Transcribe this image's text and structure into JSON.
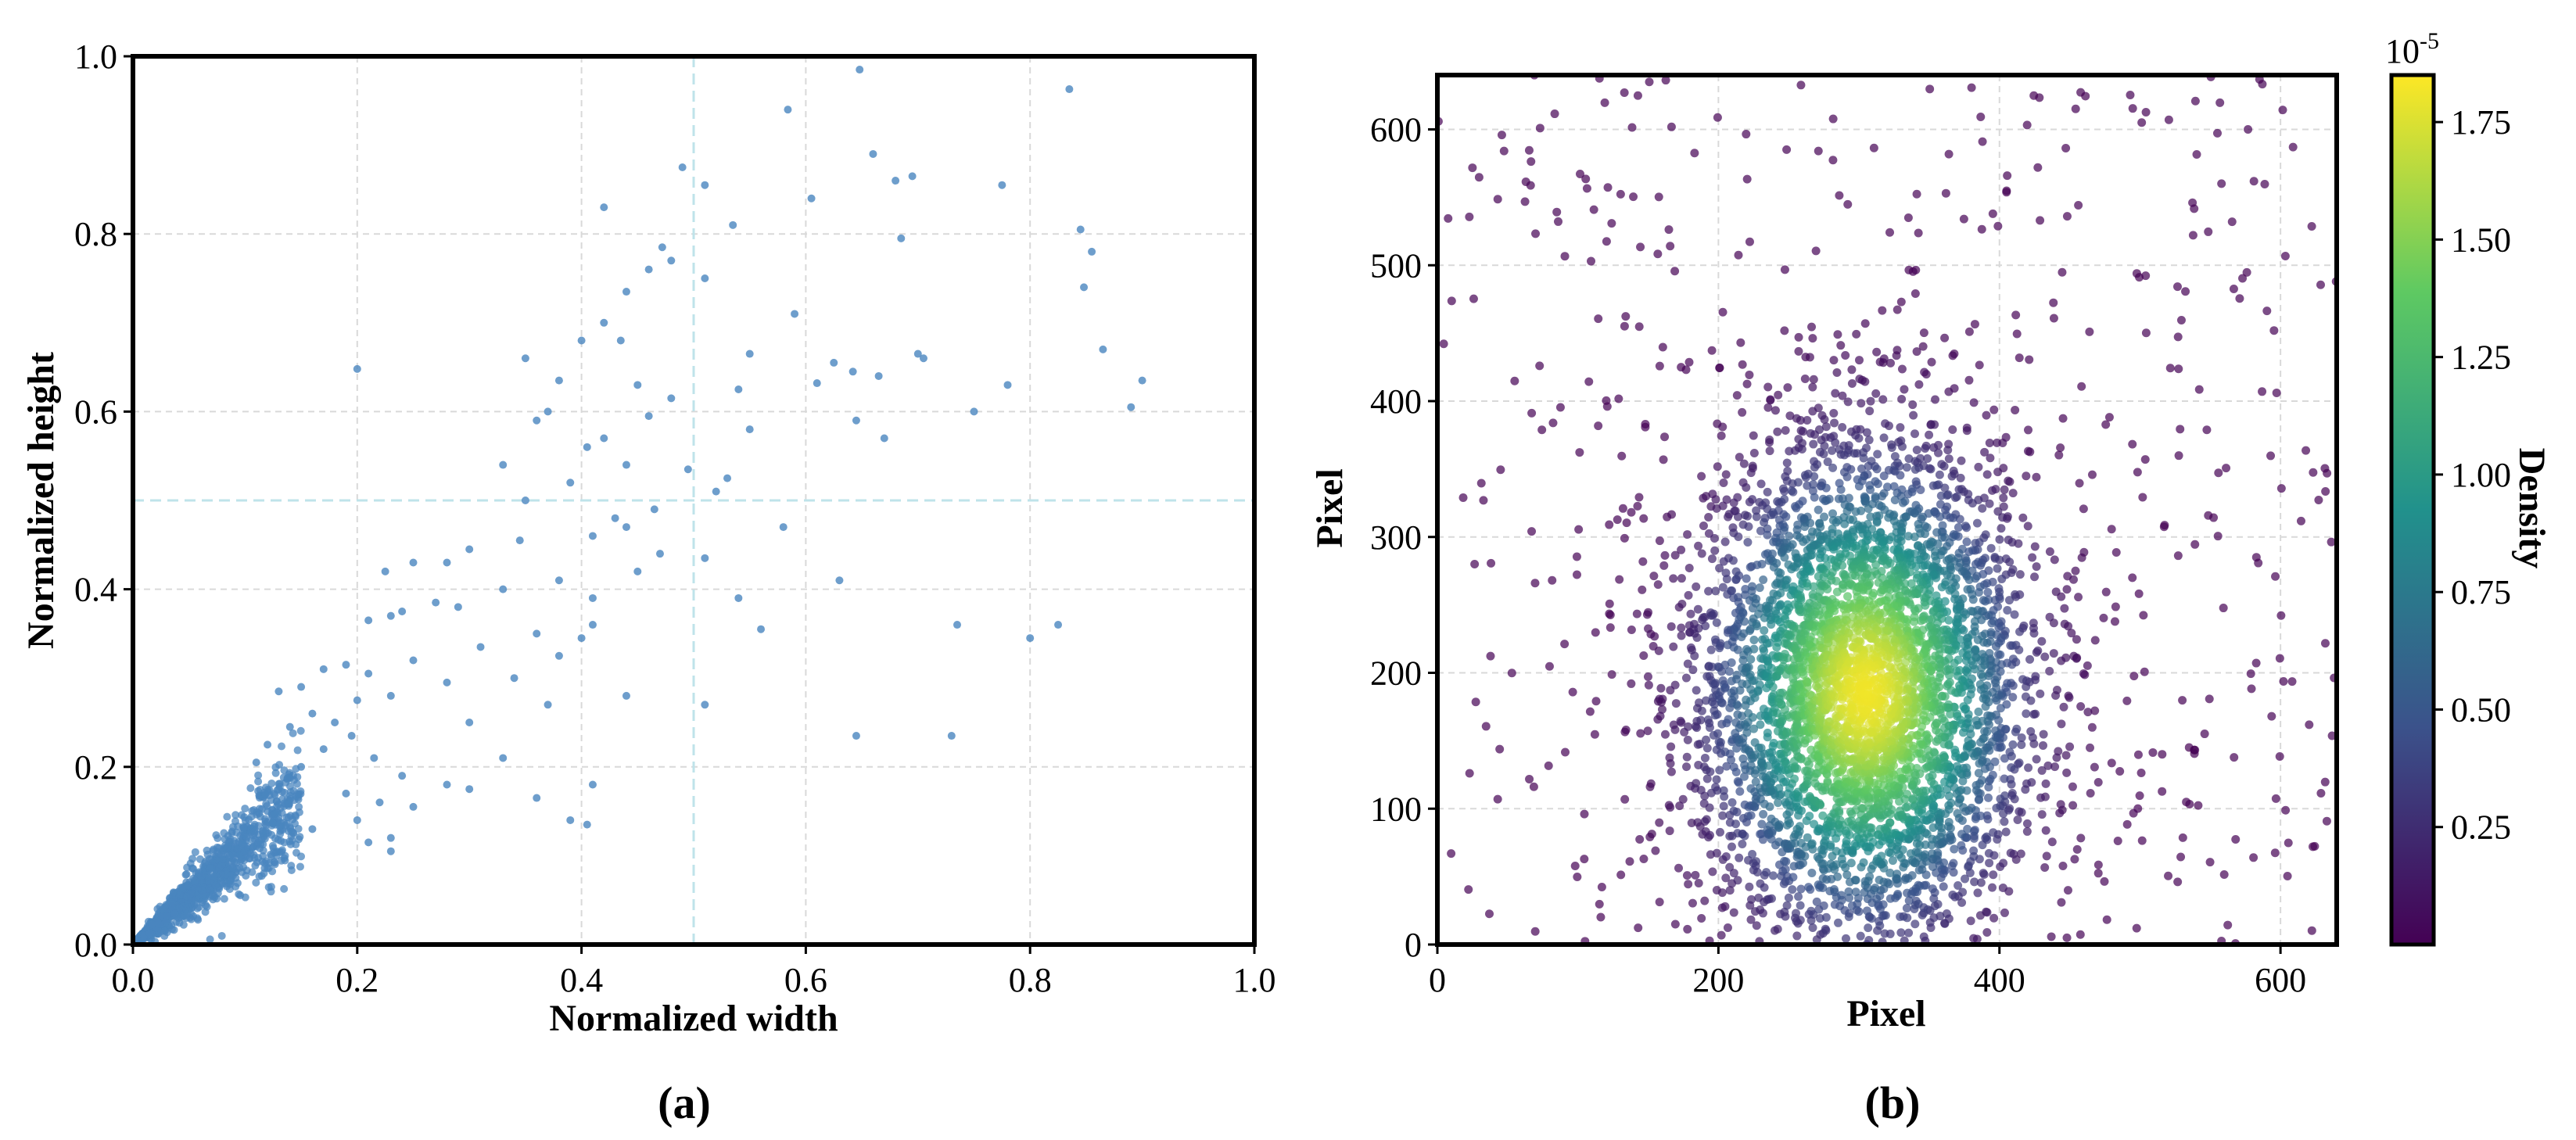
{
  "colors": {
    "scatter_a": "#4a86bf",
    "reference_line": "#bfe3ea",
    "grid": "#d9d9d9",
    "colormap": [
      "#440154",
      "#3b528b",
      "#21918c",
      "#5ec962",
      "#fde725"
    ]
  },
  "chart_data": [
    {
      "type": "scatter",
      "panel_label": "(a)",
      "xlabel": "Normalized width",
      "ylabel": "Normalized height",
      "xlim": [
        0.0,
        1.0
      ],
      "ylim": [
        0.0,
        1.0
      ],
      "xticks": [
        "0.0",
        "0.2",
        "0.4",
        "0.6",
        "0.8",
        "1.0"
      ],
      "yticks": [
        "0.0",
        "0.2",
        "0.4",
        "0.6",
        "0.8",
        "1.0"
      ],
      "grid": true,
      "reference_lines": {
        "x": 0.5,
        "y": 0.5
      },
      "cluster": {
        "note": "dense cluster near origin along y≈1.1x, ~1400 points",
        "x_range": [
          0.0,
          0.15
        ],
        "slope": 1.1
      },
      "points": [
        [
          0.648,
          0.985
        ],
        [
          0.835,
          0.963
        ],
        [
          0.584,
          0.94
        ],
        [
          0.66,
          0.89
        ],
        [
          0.49,
          0.875
        ],
        [
          0.775,
          0.855
        ],
        [
          0.51,
          0.855
        ],
        [
          0.68,
          0.86
        ],
        [
          0.695,
          0.865
        ],
        [
          0.605,
          0.84
        ],
        [
          0.42,
          0.83
        ],
        [
          0.845,
          0.805
        ],
        [
          0.535,
          0.81
        ],
        [
          0.685,
          0.795
        ],
        [
          0.472,
          0.785
        ],
        [
          0.855,
          0.78
        ],
        [
          0.48,
          0.77
        ],
        [
          0.46,
          0.76
        ],
        [
          0.51,
          0.75
        ],
        [
          0.848,
          0.74
        ],
        [
          0.44,
          0.735
        ],
        [
          0.59,
          0.71
        ],
        [
          0.4,
          0.68
        ],
        [
          0.435,
          0.68
        ],
        [
          0.42,
          0.7
        ],
        [
          0.865,
          0.67
        ],
        [
          0.35,
          0.66
        ],
        [
          0.7,
          0.665
        ],
        [
          0.705,
          0.66
        ],
        [
          0.625,
          0.655
        ],
        [
          0.2,
          0.648
        ],
        [
          0.55,
          0.665
        ],
        [
          0.642,
          0.645
        ],
        [
          0.665,
          0.64
        ],
        [
          0.9,
          0.635
        ],
        [
          0.38,
          0.635
        ],
        [
          0.78,
          0.63
        ],
        [
          0.61,
          0.632
        ],
        [
          0.54,
          0.625
        ],
        [
          0.45,
          0.63
        ],
        [
          0.89,
          0.605
        ],
        [
          0.48,
          0.615
        ],
        [
          0.37,
          0.6
        ],
        [
          0.46,
          0.595
        ],
        [
          0.75,
          0.6
        ],
        [
          0.36,
          0.59
        ],
        [
          0.645,
          0.59
        ],
        [
          0.55,
          0.58
        ],
        [
          0.42,
          0.57
        ],
        [
          0.67,
          0.57
        ],
        [
          0.405,
          0.56
        ],
        [
          0.33,
          0.54
        ],
        [
          0.44,
          0.54
        ],
        [
          0.495,
          0.535
        ],
        [
          0.53,
          0.525
        ],
        [
          0.52,
          0.51
        ],
        [
          0.39,
          0.52
        ],
        [
          0.35,
          0.5
        ],
        [
          0.465,
          0.49
        ],
        [
          0.43,
          0.48
        ],
        [
          0.58,
          0.47
        ],
        [
          0.44,
          0.47
        ],
        [
          0.41,
          0.46
        ],
        [
          0.345,
          0.455
        ],
        [
          0.3,
          0.445
        ],
        [
          0.47,
          0.44
        ],
        [
          0.51,
          0.435
        ],
        [
          0.28,
          0.43
        ],
        [
          0.25,
          0.43
        ],
        [
          0.225,
          0.42
        ],
        [
          0.45,
          0.42
        ],
        [
          0.38,
          0.41
        ],
        [
          0.63,
          0.41
        ],
        [
          0.33,
          0.4
        ],
        [
          0.41,
          0.39
        ],
        [
          0.54,
          0.39
        ],
        [
          0.27,
          0.385
        ],
        [
          0.29,
          0.38
        ],
        [
          0.24,
          0.375
        ],
        [
          0.23,
          0.37
        ],
        [
          0.21,
          0.365
        ],
        [
          0.735,
          0.36
        ],
        [
          0.825,
          0.36
        ],
        [
          0.41,
          0.36
        ],
        [
          0.36,
          0.35
        ],
        [
          0.56,
          0.355
        ],
        [
          0.8,
          0.345
        ],
        [
          0.4,
          0.345
        ],
        [
          0.31,
          0.335
        ],
        [
          0.38,
          0.325
        ],
        [
          0.25,
          0.32
        ],
        [
          0.19,
          0.315
        ],
        [
          0.17,
          0.31
        ],
        [
          0.21,
          0.305
        ],
        [
          0.34,
          0.3
        ],
        [
          0.28,
          0.295
        ],
        [
          0.15,
          0.29
        ],
        [
          0.13,
          0.285
        ],
        [
          0.51,
          0.27
        ],
        [
          0.44,
          0.28
        ],
        [
          0.2,
          0.275
        ],
        [
          0.23,
          0.28
        ],
        [
          0.37,
          0.27
        ],
        [
          0.16,
          0.26
        ],
        [
          0.18,
          0.25
        ],
        [
          0.14,
          0.245
        ],
        [
          0.3,
          0.25
        ],
        [
          0.645,
          0.235
        ],
        [
          0.73,
          0.235
        ],
        [
          0.195,
          0.235
        ],
        [
          0.12,
          0.225
        ],
        [
          0.17,
          0.22
        ],
        [
          0.33,
          0.21
        ],
        [
          0.215,
          0.21
        ],
        [
          0.15,
          0.2
        ],
        [
          0.11,
          0.205
        ],
        [
          0.24,
          0.19
        ],
        [
          0.28,
          0.18
        ],
        [
          0.41,
          0.18
        ],
        [
          0.3,
          0.175
        ],
        [
          0.19,
          0.17
        ],
        [
          0.13,
          0.175
        ],
        [
          0.36,
          0.165
        ],
        [
          0.22,
          0.16
        ],
        [
          0.25,
          0.155
        ],
        [
          0.12,
          0.15
        ],
        [
          0.39,
          0.14
        ],
        [
          0.405,
          0.135
        ],
        [
          0.2,
          0.14
        ],
        [
          0.16,
          0.13
        ],
        [
          0.23,
          0.12
        ],
        [
          0.23,
          0.105
        ],
        [
          0.21,
          0.115
        ]
      ]
    },
    {
      "type": "scatter",
      "panel_label": "(b)",
      "xlabel": "Pixel",
      "ylabel": "Pixel",
      "xlim": [
        0,
        640
      ],
      "ylim": [
        0,
        640
      ],
      "xticks": [
        "0",
        "200",
        "400",
        "600"
      ],
      "yticks": [
        "0",
        "100",
        "200",
        "300",
        "400",
        "500",
        "600"
      ],
      "grid": true,
      "color_by": "Density",
      "density_center": [
        305,
        185
      ],
      "density_spread": [
        60,
        95
      ],
      "approx_point_count": 5000,
      "colorbar": {
        "label": "Density",
        "exponent": "10",
        "exponent_power": "-5",
        "range": [
          0.0,
          1.85
        ],
        "ticks": [
          "0.25",
          "0.50",
          "0.75",
          "1.00",
          "1.25",
          "1.50",
          "1.75"
        ]
      }
    }
  ]
}
